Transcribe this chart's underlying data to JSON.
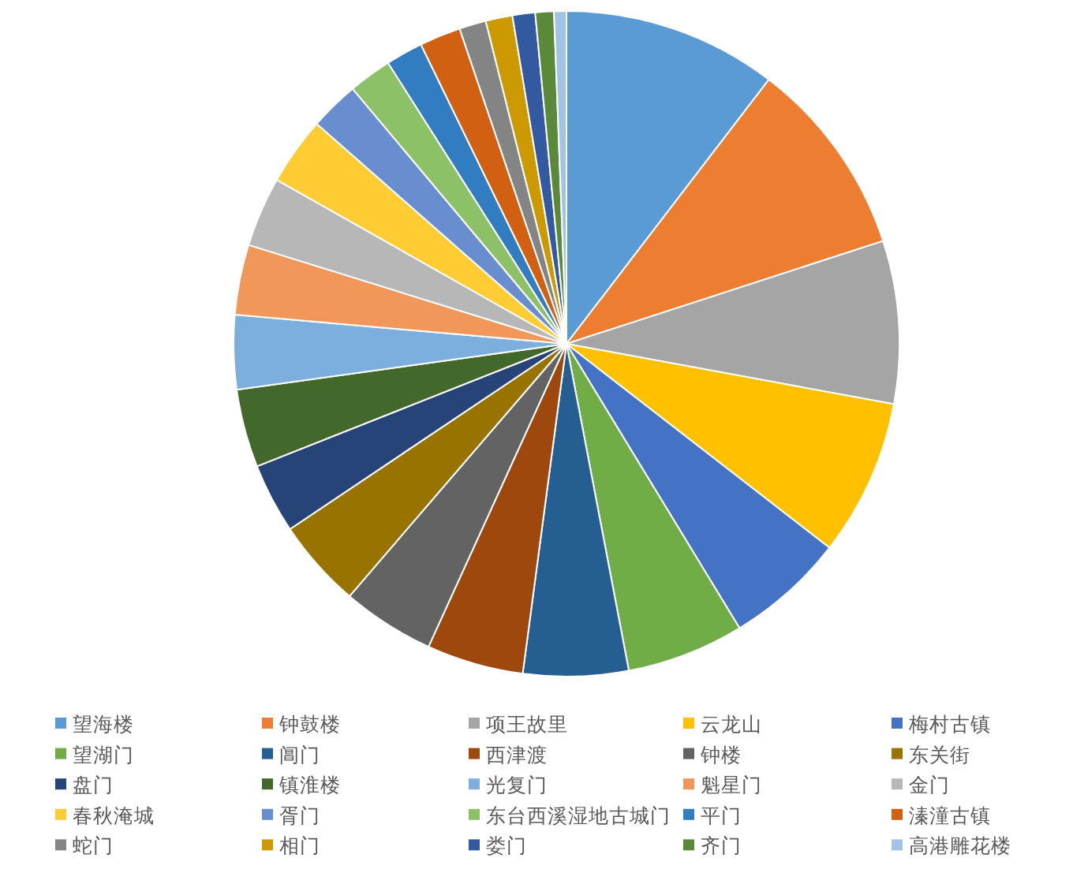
{
  "chart_data": {
    "type": "pie",
    "legend": "bottom",
    "categories": [
      "望海楼",
      "钟鼓楼",
      "项王故里",
      "云龙山",
      "梅村古镇",
      "望湖门",
      "阊门",
      "西津渡",
      "钟楼",
      "东关街",
      "盘门",
      "镇淮楼",
      "光复门",
      "魁星门",
      "金门",
      "春秋淹城",
      "胥门",
      "东台西溪湿地古城门",
      "平门",
      "溱潼古镇",
      "蛇门",
      "相门",
      "娄门",
      "齐门",
      "高港雕花楼"
    ],
    "values": [
      10.4,
      9.6,
      7.9,
      7.6,
      5.8,
      5.7,
      5.1,
      4.7,
      4.5,
      4.3,
      3.4,
      3.8,
      3.6,
      3.4,
      3.4,
      3.3,
      2.4,
      2.1,
      1.8,
      2.0,
      1.3,
      1.3,
      1.1,
      0.9,
      0.6
    ],
    "colors": [
      "#5b9bd5",
      "#ed7d31",
      "#a5a5a5",
      "#ffc000",
      "#4472c4",
      "#70ad47",
      "#255e91",
      "#9e480e",
      "#636363",
      "#997300",
      "#264478",
      "#43682b",
      "#7cafdd",
      "#f1975a",
      "#b7b7b7",
      "#ffcd33",
      "#698ed0",
      "#8cc168",
      "#327dc2",
      "#d26012",
      "#848484",
      "#cc9a00",
      "#335aa1",
      "#5a8a39",
      "#a2c3e5"
    ]
  }
}
